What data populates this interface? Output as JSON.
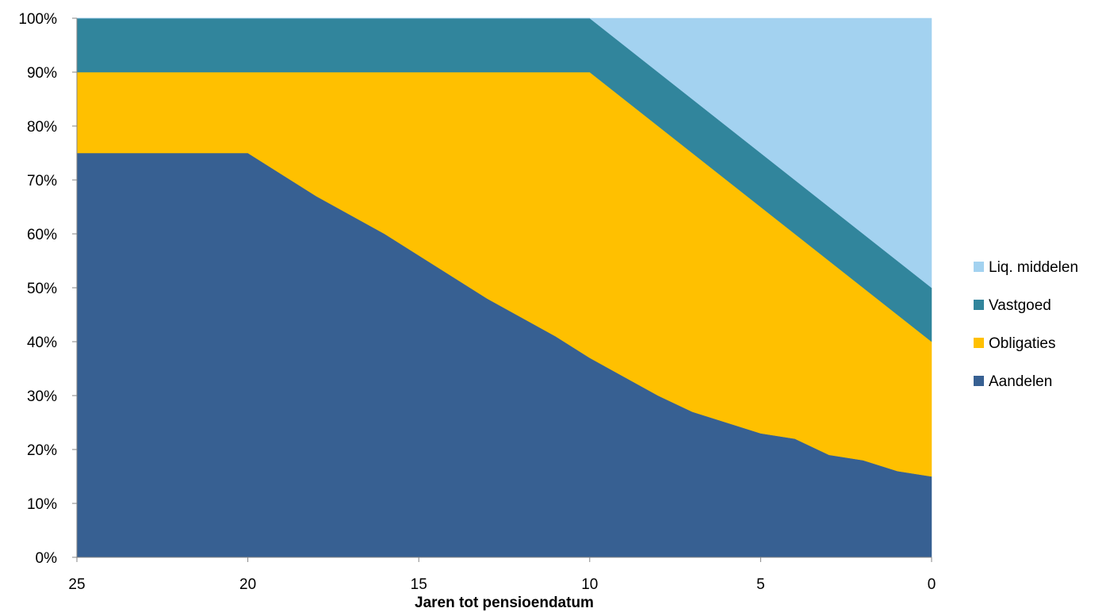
{
  "chart_data": {
    "type": "area",
    "stacked": true,
    "xlabel": "Jaren tot pensioendatum",
    "ylabel": "",
    "x": [
      25,
      24,
      23,
      22,
      21,
      20,
      19,
      18,
      17,
      16,
      15,
      14,
      13,
      12,
      11,
      10,
      9,
      8,
      7,
      6,
      5,
      4,
      3,
      2,
      1,
      0
    ],
    "xlim": [
      25,
      0
    ],
    "x_ticks": [
      "25",
      "20",
      "15",
      "10",
      "5",
      "0"
    ],
    "ylim": [
      0,
      100
    ],
    "y_ticks": [
      "0%",
      "10%",
      "20%",
      "30%",
      "40%",
      "50%",
      "60%",
      "70%",
      "80%",
      "90%",
      "100%"
    ],
    "grid": false,
    "legend_position": "right",
    "series": [
      {
        "name": "Aandelen",
        "color": "#376092",
        "values": [
          75,
          75,
          75,
          75,
          75,
          75,
          71,
          67,
          63.5,
          60,
          56,
          52,
          48,
          44.5,
          41,
          37,
          33.5,
          30,
          27,
          25,
          23,
          22,
          19,
          18,
          16,
          15
        ]
      },
      {
        "name": "Obligaties",
        "color": "#FFC000",
        "values": [
          15,
          15,
          15,
          15,
          15,
          15,
          19,
          23,
          26.5,
          30,
          34,
          38,
          42,
          45.5,
          49,
          53,
          51.5,
          50,
          48,
          45,
          42,
          38,
          36,
          32,
          29,
          25
        ]
      },
      {
        "name": "Vastgoed",
        "color": "#31859C",
        "values": [
          10,
          10,
          10,
          10,
          10,
          10,
          10,
          10,
          10,
          10,
          10,
          10,
          10,
          10,
          10,
          10,
          10,
          10,
          10,
          10,
          10,
          10,
          10,
          10,
          10,
          10
        ]
      },
      {
        "name": "Liq. middelen",
        "color": "#A3D2F0",
        "values": [
          0,
          0,
          0,
          0,
          0,
          0,
          0,
          0,
          0,
          0,
          0,
          0,
          0,
          0,
          0,
          0,
          5,
          10,
          15,
          20,
          25,
          30,
          35,
          40,
          45,
          50
        ]
      }
    ],
    "legend_order": [
      "Liq. middelen",
      "Vastgoed",
      "Obligaties",
      "Aandelen"
    ]
  }
}
